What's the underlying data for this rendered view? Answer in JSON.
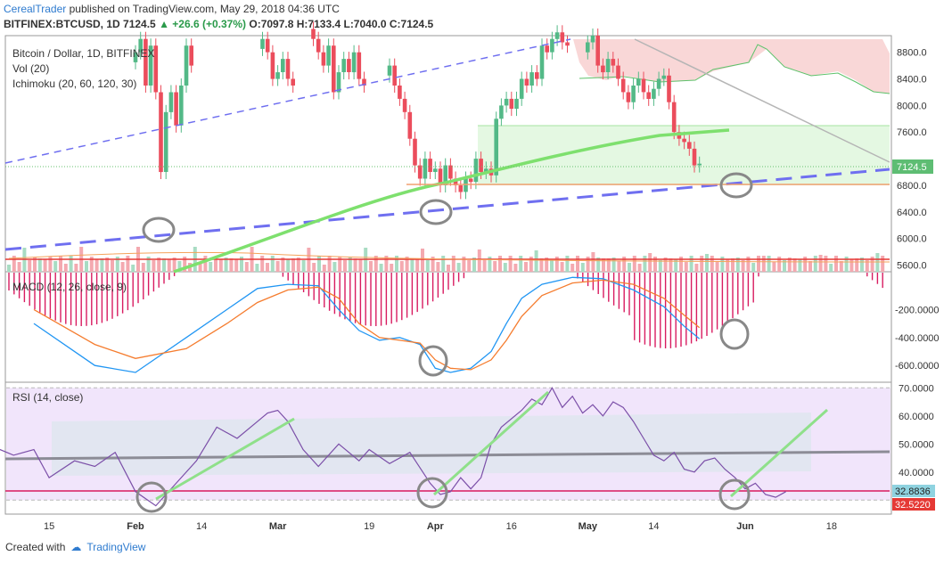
{
  "header": {
    "author": "CerealTrader",
    "published": "published on TradingView.com, May 29, 2018 04:36 UTC",
    "symbol": "BITFINEX:BTCUSD, 1D",
    "last": "7124.5",
    "change": "+26.6 (+0.37%)",
    "ohlc": {
      "o": "O:7097.8",
      "h": "H:7133.4",
      "l": "L:7040.0",
      "c": "C:7124.5"
    }
  },
  "footer": {
    "created_with": "Created with",
    "brand": "TradingView"
  },
  "colors": {
    "up": "#53b987",
    "down": "#eb4d5c",
    "ichimoku": "#5dc26b",
    "macd": "#2196f3",
    "signal": "#f57c2e",
    "rsi": "#7b4fa8",
    "trend": "#6f6ff0"
  },
  "chart_data": [
    {
      "type": "candlestick",
      "legend": [
        "Bitcoin / Dollar, 1D, BITFINEX",
        "Vol (20)",
        "Ichimoku (20, 60, 120, 30)"
      ],
      "ylim": [
        5500,
        9050
      ],
      "y_ticks": [
        "8800.0",
        "8400.0",
        "8000.0",
        "7600.0",
        "6800.0",
        "6400.0",
        "6000.0",
        "5600.0"
      ],
      "last_label": "7124.5",
      "x_ticks": [
        "15",
        "Feb",
        "14",
        "Mar",
        "19",
        "Apr",
        "16",
        "May",
        "14",
        "Jun",
        "18"
      ],
      "x_tick_days": [
        -17,
        0,
        13,
        28,
        46,
        59,
        74,
        89,
        102,
        120,
        137
      ],
      "close_series": [
        [
          0,
          8800
        ],
        [
          1,
          9000
        ],
        [
          2,
          8300
        ],
        [
          3,
          8900
        ],
        [
          4,
          8200
        ],
        [
          5,
          7000
        ],
        [
          6,
          7900
        ],
        [
          7,
          8200
        ],
        [
          8,
          7700
        ],
        [
          9,
          8300
        ],
        [
          10,
          8900
        ],
        [
          11,
          8600
        ],
        [
          25,
          9000
        ],
        [
          26,
          8800
        ],
        [
          27,
          8400
        ],
        [
          28,
          8500
        ],
        [
          29,
          8700
        ],
        [
          30,
          8400
        ],
        [
          31,
          8300
        ],
        [
          35,
          9000
        ],
        [
          36,
          8800
        ],
        [
          37,
          8600
        ],
        [
          38,
          8900
        ],
        [
          39,
          8200
        ],
        [
          40,
          8500
        ],
        [
          41,
          8700
        ],
        [
          42,
          8500
        ],
        [
          43,
          8800
        ],
        [
          44,
          8400
        ],
        [
          45,
          8300
        ],
        [
          50,
          8600
        ],
        [
          51,
          8300
        ],
        [
          52,
          8100
        ],
        [
          53,
          7900
        ],
        [
          54,
          7500
        ],
        [
          55,
          7100
        ],
        [
          56,
          6900
        ],
        [
          57,
          7200
        ],
        [
          58,
          7000
        ],
        [
          59,
          7050
        ],
        [
          60,
          6800
        ],
        [
          61,
          7100
        ],
        [
          62,
          6900
        ],
        [
          63,
          6800
        ],
        [
          64,
          6700
        ],
        [
          65,
          6900
        ],
        [
          66,
          6850
        ],
        [
          67,
          7200
        ],
        [
          68,
          7000
        ],
        [
          69,
          7050
        ],
        [
          70,
          6950
        ],
        [
          71,
          7800
        ],
        [
          72,
          8000
        ],
        [
          73,
          8100
        ],
        [
          74,
          7950
        ],
        [
          75,
          8100
        ],
        [
          76,
          8400
        ],
        [
          77,
          8300
        ],
        [
          78,
          8500
        ],
        [
          79,
          8400
        ],
        [
          80,
          8900
        ],
        [
          81,
          8800
        ],
        [
          82,
          9000
        ],
        [
          83,
          9100
        ],
        [
          84,
          8950
        ],
        [
          85,
          8900
        ],
        [
          89,
          8950
        ],
        [
          90,
          9050
        ],
        [
          91,
          8600
        ],
        [
          92,
          8500
        ],
        [
          93,
          8700
        ],
        [
          94,
          8600
        ],
        [
          95,
          8400
        ],
        [
          96,
          8200
        ],
        [
          97,
          8050
        ],
        [
          98,
          8300
        ],
        [
          99,
          8400
        ],
        [
          100,
          8200
        ],
        [
          101,
          8100
        ],
        [
          102,
          8250
        ],
        [
          103,
          8400
        ],
        [
          104,
          8450
        ],
        [
          105,
          8050
        ],
        [
          106,
          7600
        ],
        [
          107,
          7500
        ],
        [
          108,
          7450
        ],
        [
          109,
          7350
        ],
        [
          110,
          7100
        ],
        [
          111,
          7124.5
        ]
      ]
    },
    {
      "type": "line",
      "legend": "MACD (12, 26, close, 9)",
      "ylim": [
        -720,
        70
      ],
      "y_ticks": [
        "-200.0000",
        "-400.0000",
        "-600.0000"
      ],
      "series": [
        {
          "name": "MACD",
          "values": [
            [
              -20,
              -300
            ],
            [
              -8,
              -600
            ],
            [
              0,
              -650
            ],
            [
              10,
              -400
            ],
            [
              18,
              -200
            ],
            [
              24,
              -50
            ],
            [
              30,
              -20
            ],
            [
              36,
              -30
            ],
            [
              40,
              -200
            ],
            [
              44,
              -350
            ],
            [
              48,
              -420
            ],
            [
              52,
              -400
            ],
            [
              56,
              -450
            ],
            [
              59,
              -620
            ],
            [
              62,
              -650
            ],
            [
              66,
              -620
            ],
            [
              70,
              -500
            ],
            [
              73,
              -300
            ],
            [
              76,
              -120
            ],
            [
              80,
              -20
            ],
            [
              86,
              30
            ],
            [
              92,
              20
            ],
            [
              98,
              -60
            ],
            [
              104,
              -180
            ],
            [
              108,
              -320
            ],
            [
              111,
              -410
            ]
          ]
        },
        {
          "name": "Signal",
          "values": [
            [
              -20,
              -200
            ],
            [
              -8,
              -450
            ],
            [
              0,
              -550
            ],
            [
              10,
              -480
            ],
            [
              18,
              -300
            ],
            [
              24,
              -150
            ],
            [
              30,
              -60
            ],
            [
              36,
              -40
            ],
            [
              40,
              -120
            ],
            [
              44,
              -300
            ],
            [
              48,
              -400
            ],
            [
              52,
              -420
            ],
            [
              56,
              -440
            ],
            [
              59,
              -560
            ],
            [
              62,
              -620
            ],
            [
              66,
              -630
            ],
            [
              70,
              -560
            ],
            [
              73,
              -420
            ],
            [
              76,
              -250
            ],
            [
              80,
              -100
            ],
            [
              86,
              -10
            ],
            [
              92,
              10
            ],
            [
              98,
              -20
            ],
            [
              104,
              -120
            ],
            [
              108,
              -240
            ],
            [
              111,
              -330
            ]
          ]
        }
      ]
    },
    {
      "type": "line",
      "legend": "RSI (14, close)",
      "ylim": [
        25,
        72
      ],
      "y_ticks": [
        "70.0000",
        "60.0000",
        "50.0000",
        "40.0000"
      ],
      "last_labels": [
        "32.8836",
        "32.5220"
      ],
      "series": [
        {
          "name": "RSI",
          "values": [
            [
              -28,
              49
            ],
            [
              -24,
              46
            ],
            [
              -20,
              48
            ],
            [
              -17,
              38
            ],
            [
              -12,
              44
            ],
            [
              -8,
              42
            ],
            [
              -4,
              47
            ],
            [
              -2,
              40
            ],
            [
              0,
              33
            ],
            [
              4,
              28
            ],
            [
              8,
              36
            ],
            [
              12,
              44
            ],
            [
              16,
              56
            ],
            [
              20,
              52
            ],
            [
              24,
              58
            ],
            [
              26,
              61
            ],
            [
              28,
              62
            ],
            [
              30,
              58
            ],
            [
              33,
              48
            ],
            [
              36,
              42
            ],
            [
              40,
              50
            ],
            [
              44,
              44
            ],
            [
              46,
              48
            ],
            [
              50,
              43
            ],
            [
              54,
              47
            ],
            [
              58,
              36
            ],
            [
              60,
              32
            ],
            [
              62,
              33
            ],
            [
              64,
              38
            ],
            [
              66,
              34
            ],
            [
              68,
              38
            ],
            [
              70,
              50
            ],
            [
              72,
              56
            ],
            [
              76,
              62
            ],
            [
              78,
              66
            ],
            [
              80,
              64
            ],
            [
              82,
              70
            ],
            [
              84,
              63
            ],
            [
              86,
              67
            ],
            [
              88,
              61
            ],
            [
              90,
              64
            ],
            [
              92,
              60
            ],
            [
              94,
              65
            ],
            [
              96,
              63
            ],
            [
              98,
              58
            ],
            [
              100,
              52
            ],
            [
              102,
              46
            ],
            [
              104,
              44
            ],
            [
              106,
              47
            ],
            [
              108,
              41
            ],
            [
              110,
              40
            ],
            [
              112,
              44
            ],
            [
              114,
              45
            ],
            [
              116,
              41
            ],
            [
              118,
              38
            ],
            [
              120,
              34
            ],
            [
              122,
              36
            ],
            [
              124,
              32
            ],
            [
              126,
              31
            ],
            [
              128,
              33
            ]
          ]
        }
      ]
    }
  ]
}
